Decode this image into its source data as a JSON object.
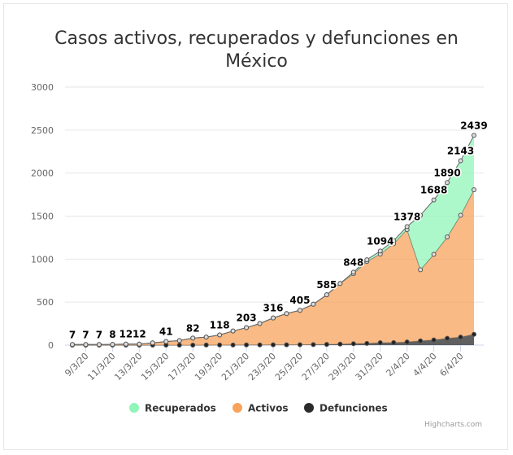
{
  "chart_data": {
    "type": "area_stacked",
    "title": "Casos activos, recuperados y defunciones en México",
    "categories": [
      null,
      "9/3/20",
      null,
      "11/3/20",
      null,
      "13/3/20",
      null,
      "15/3/20",
      null,
      "17/3/20",
      null,
      "19/3/20",
      null,
      "21/3/20",
      null,
      "23/3/20",
      null,
      "25/3/20",
      null,
      "27/3/20",
      null,
      "29/3/20",
      null,
      "31/3/20",
      null,
      "2/4/20",
      null,
      "4/4/20",
      null,
      "6/4/20",
      null
    ],
    "series": [
      {
        "name": "Recuperados",
        "color": "#90f5b8",
        "values": [
          0,
          0,
          0,
          0,
          0,
          0,
          0,
          0,
          0,
          0,
          0,
          0,
          0,
          0,
          0,
          0,
          0,
          0,
          0,
          0,
          0,
          17,
          20,
          35,
          35,
          35,
          633,
          633,
          633,
          633,
          633
        ]
      },
      {
        "name": "Activos",
        "color": "#f7a35c",
        "values": [
          7,
          7,
          7,
          8,
          12,
          12,
          26,
          41,
          53,
          82,
          92,
          117,
          163,
          201,
          249,
          312,
          363,
          400,
          469,
          577,
          705,
          815,
          953,
          1031,
          1151,
          1306,
          827,
          995,
          1178,
          1416,
          1681
        ]
      },
      {
        "name": "Defunciones",
        "color": "#2b2b2b",
        "values": [
          0,
          0,
          0,
          0,
          0,
          0,
          0,
          0,
          0,
          0,
          1,
          1,
          1,
          2,
          2,
          4,
          4,
          5,
          6,
          8,
          12,
          16,
          20,
          28,
          29,
          37,
          50,
          60,
          79,
          94,
          125
        ]
      }
    ],
    "stack_labels": [
      7,
      7,
      7,
      8,
      12,
      12,
      null,
      41,
      null,
      82,
      null,
      118,
      null,
      203,
      null,
      316,
      null,
      405,
      null,
      585,
      null,
      848,
      null,
      1094,
      null,
      1378,
      null,
      1688,
      1890,
      2143,
      2439
    ],
    "ylim": [
      0,
      3000
    ],
    "yticks": [
      0,
      500,
      1000,
      1500,
      2000,
      2500,
      3000
    ],
    "grid": true,
    "credits": "Highcharts.com"
  }
}
